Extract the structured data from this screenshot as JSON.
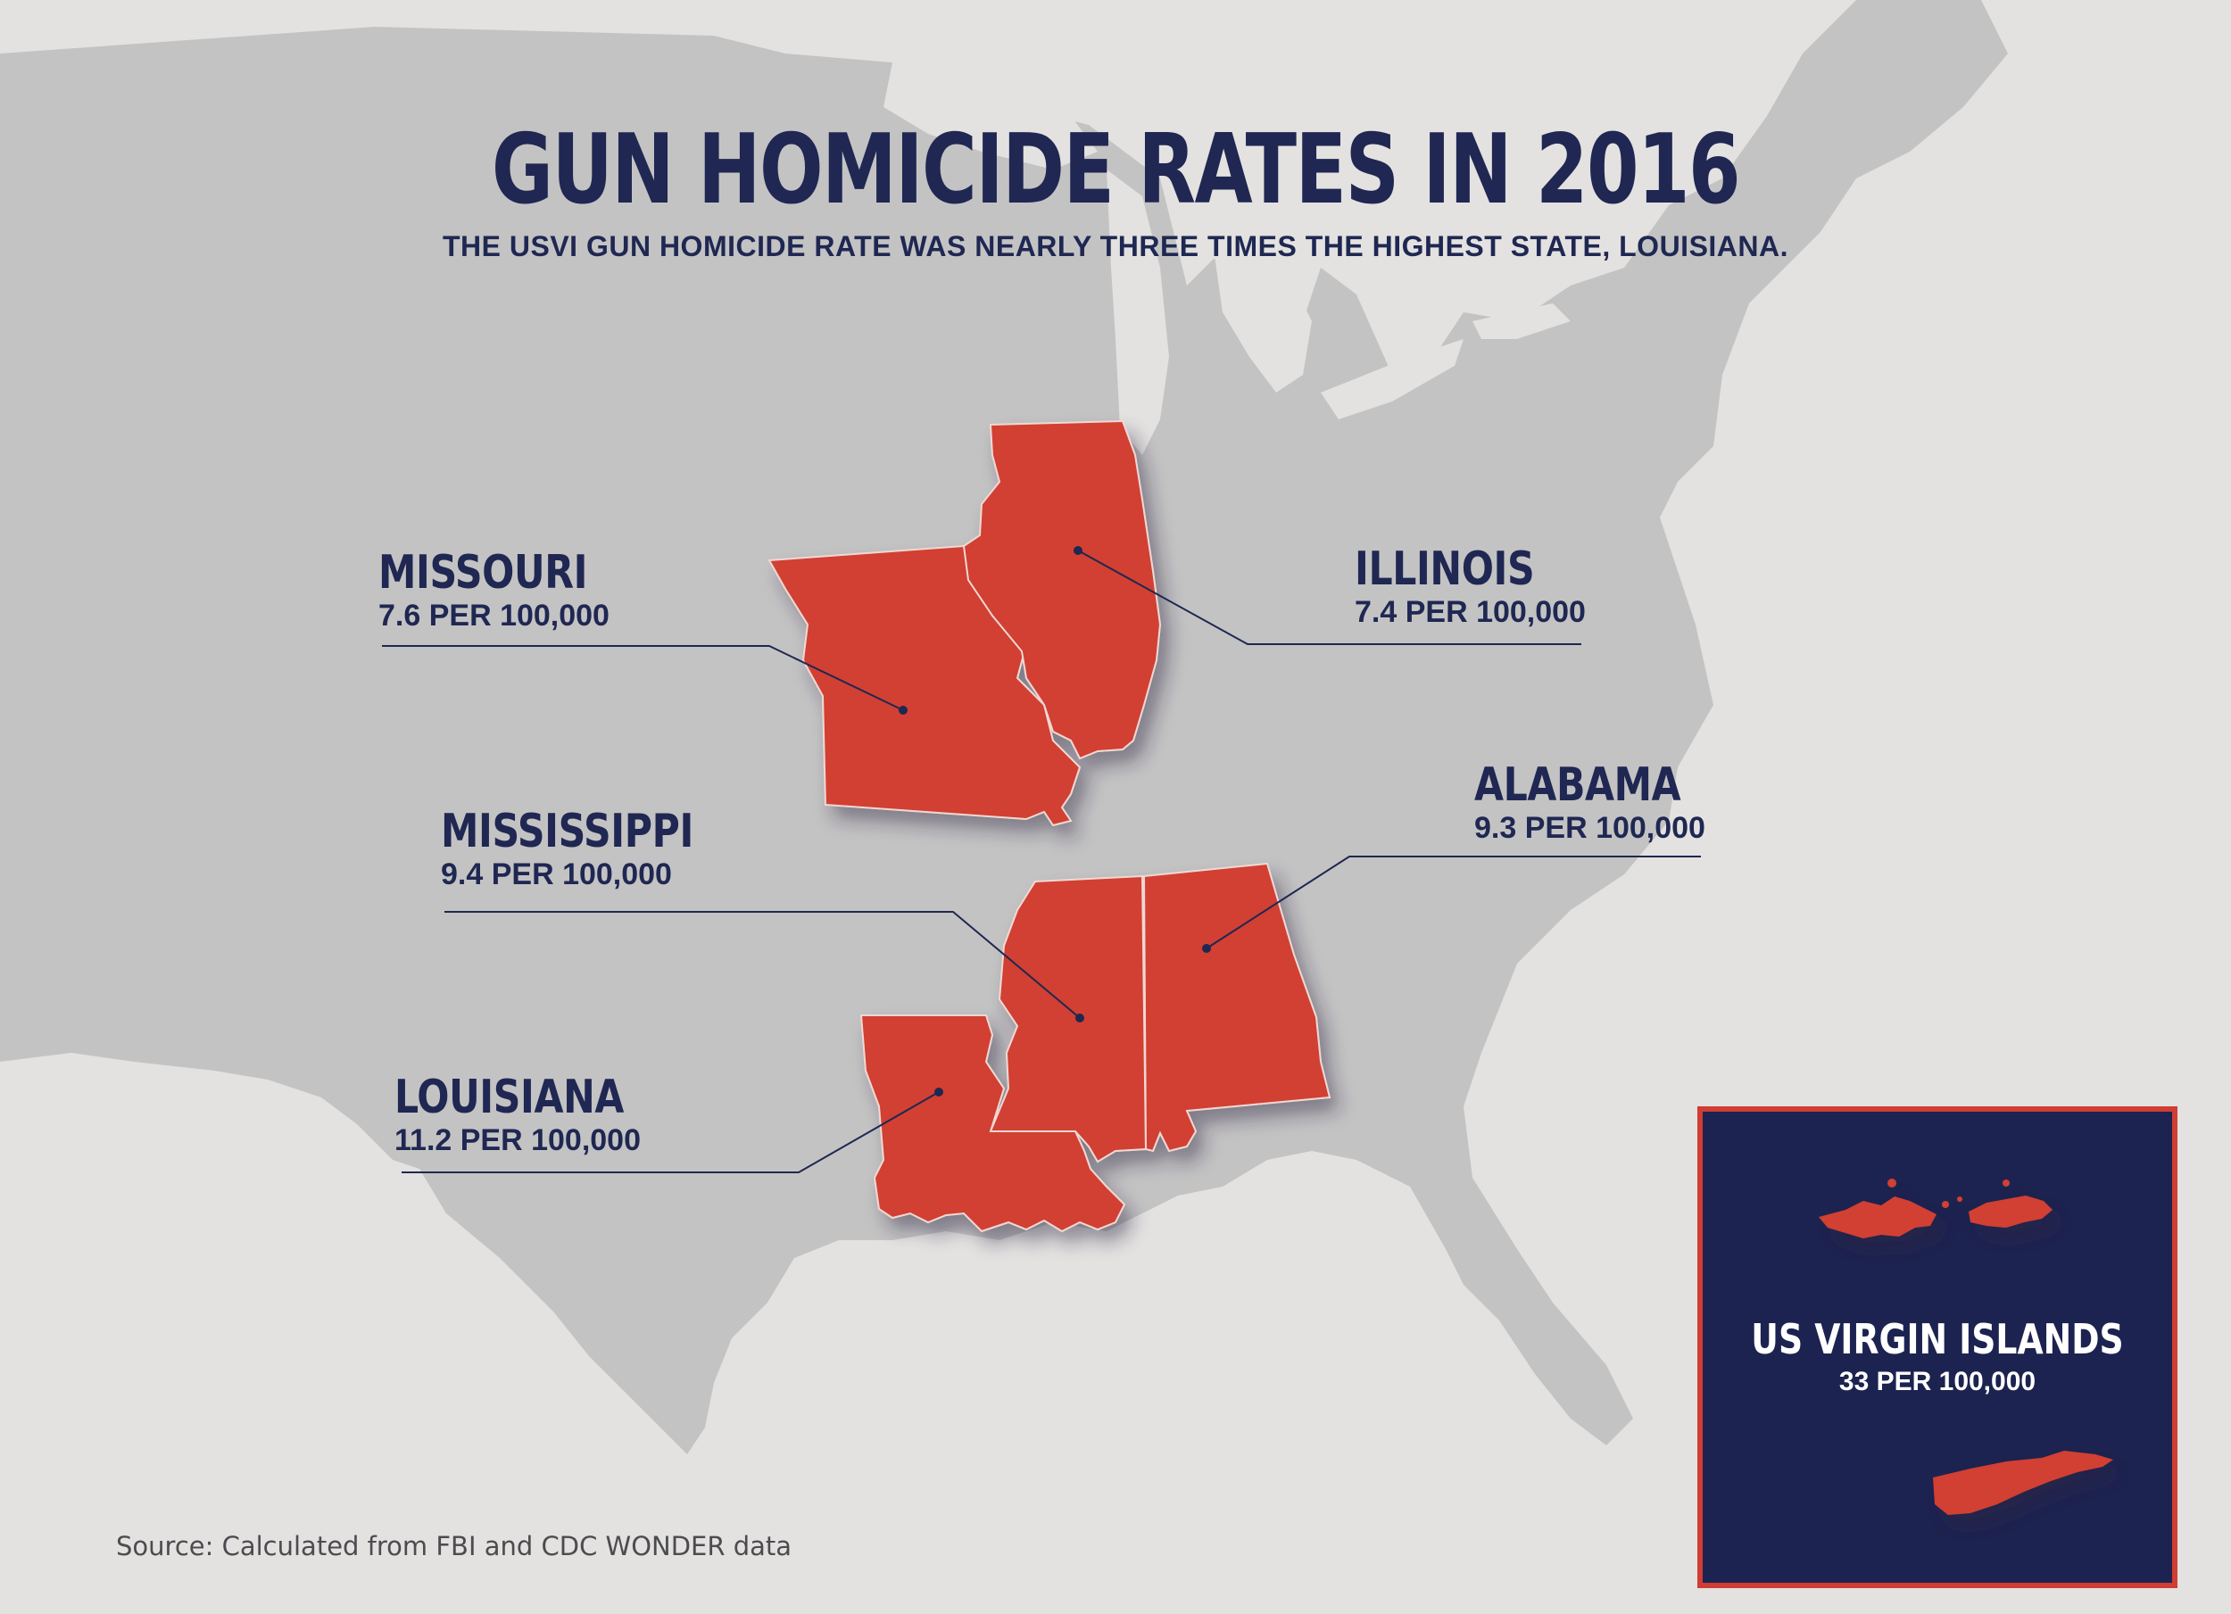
{
  "title": "GUN HOMICIDE RATES IN 2016",
  "subtitle": "THE USVI GUN HOMICIDE RATE WAS NEARLY THREE TIMES THE HIGHEST STATE, LOUISIANA.",
  "highlight_color": "#d13f32",
  "text_color": "#1f2752",
  "states": [
    {
      "name": "MISSOURI",
      "rate": "7.6 PER 100,000"
    },
    {
      "name": "ILLINOIS",
      "rate": "7.4 PER 100,000"
    },
    {
      "name": "MISSISSIPPI",
      "rate": "9.4 PER 100,000"
    },
    {
      "name": "ALABAMA",
      "rate": "9.3 PER 100,000"
    },
    {
      "name": "LOUISIANA",
      "rate": "11.2 PER 100,000"
    }
  ],
  "usvi": {
    "name": "US VIRGIN ISLANDS",
    "rate": "33 PER 100,000"
  },
  "source": "Source: Calculated from FBI and CDC WONDER data"
}
